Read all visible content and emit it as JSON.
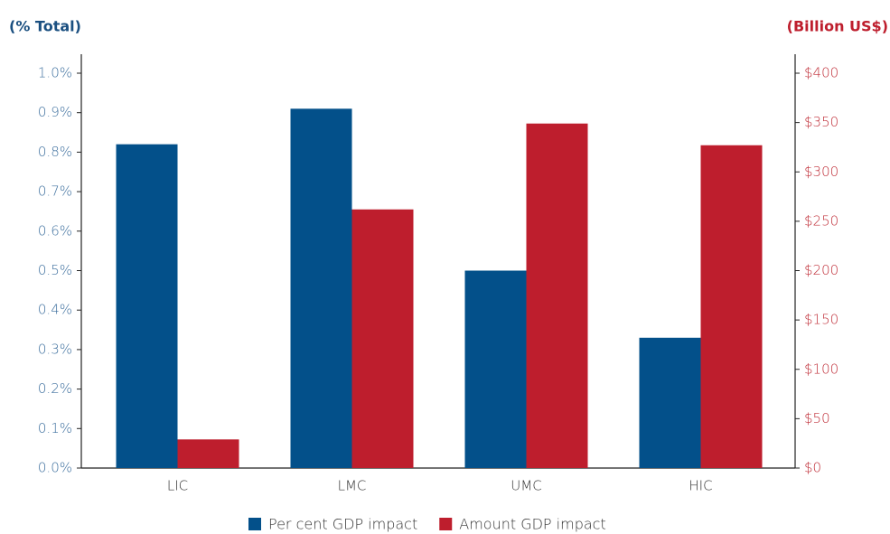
{
  "chart_data": {
    "type": "bar",
    "y_label": "(% Total)",
    "y2_label": "(Billion US$)",
    "categories": [
      "LIC",
      "LMC",
      "UMC",
      "HIC"
    ],
    "series": [
      {
        "name": "Per cent GDP impact",
        "color": "#03508a",
        "values": [
          0.82,
          0.91,
          0.5,
          0.33
        ]
      },
      {
        "name": "Amount GDP impact",
        "color": "#be1e2d",
        "axis": "y2",
        "values": [
          29,
          262,
          349,
          327
        ]
      }
    ],
    "ylim": [
      0,
      1.0
    ],
    "yticks": [
      {
        "value": 0,
        "label": "0.0%"
      },
      {
        "value": 0.1,
        "label": "0.1%"
      },
      {
        "value": 0.2,
        "label": "0.2%"
      },
      {
        "value": 0.3,
        "label": "0.3%"
      },
      {
        "value": 0.4,
        "label": "0.4%"
      },
      {
        "value": 0.5,
        "label": "0.5%"
      },
      {
        "value": 0.6,
        "label": "0.6%"
      },
      {
        "value": 0.7,
        "label": "0.7%"
      },
      {
        "value": 0.8,
        "label": "0.8%"
      },
      {
        "value": 0.9,
        "label": "0.9%"
      },
      {
        "value": 1.0,
        "label": "1.0%"
      }
    ],
    "y2lim": [
      0,
      400
    ],
    "y2ticks": [
      {
        "value": 0,
        "label": "$0"
      },
      {
        "value": 50,
        "label": "$50"
      },
      {
        "value": 100,
        "label": "$100"
      },
      {
        "value": 150,
        "label": "$150"
      },
      {
        "value": 200,
        "label": "$200"
      },
      {
        "value": 250,
        "label": "$250"
      },
      {
        "value": 300,
        "label": "$300"
      },
      {
        "value": 350,
        "label": "$350"
      },
      {
        "value": 400,
        "label": "$400"
      }
    ],
    "y_color": "#3d6f9e",
    "y2_color": "#c0303a",
    "grid": false,
    "legend": "bottom"
  }
}
